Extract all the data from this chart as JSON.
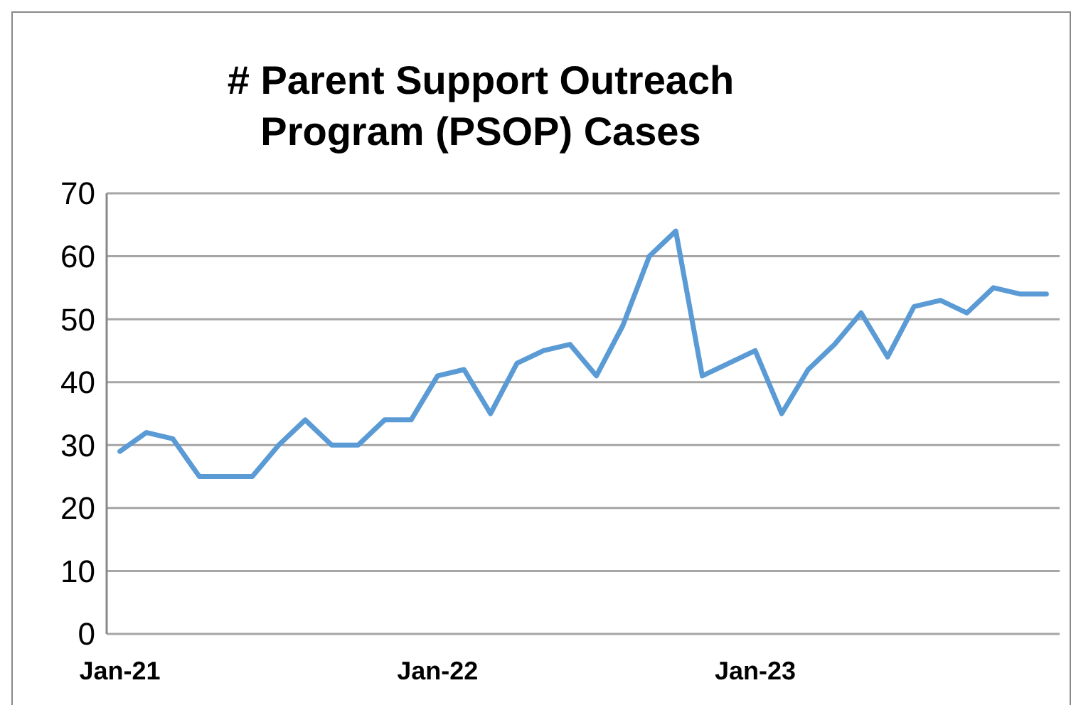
{
  "chart_data": {
    "type": "line",
    "title": "# Parent Support Outreach Program (PSOP) Cases",
    "categories": [
      "Jan-21",
      null,
      null,
      null,
      null,
      null,
      null,
      null,
      null,
      null,
      null,
      null,
      "Jan-22",
      null,
      null,
      null,
      null,
      null,
      null,
      null,
      null,
      null,
      null,
      null,
      "Jan-23",
      null,
      null,
      null,
      null,
      null,
      null,
      null,
      null,
      null,
      null,
      null
    ],
    "series": [
      {
        "color": "#5b9bd5",
        "values": [
          29,
          32,
          31,
          25,
          25,
          25,
          30,
          34,
          30,
          30,
          34,
          34,
          41,
          42,
          35,
          43,
          45,
          46,
          41,
          49,
          60,
          64,
          41,
          43,
          45,
          35,
          42,
          46,
          51,
          44,
          52,
          53,
          51,
          55,
          54,
          54
        ]
      }
    ],
    "ylim": [
      0,
      70
    ],
    "yticks": [
      0,
      10,
      20,
      30,
      40,
      50,
      60,
      70
    ],
    "grid": "y",
    "marker": "none",
    "line_style": "solid"
  }
}
